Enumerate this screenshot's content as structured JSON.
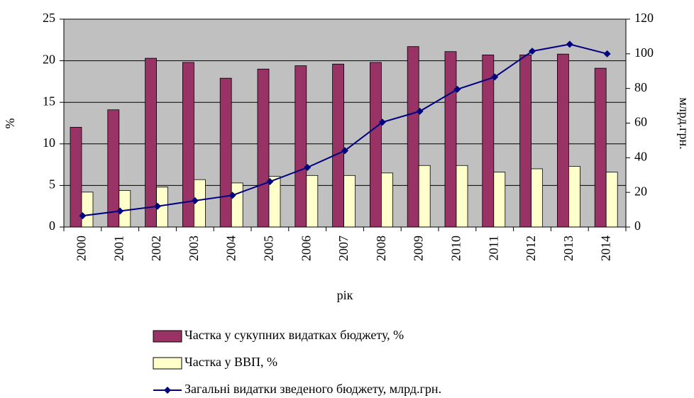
{
  "chart_data": {
    "type": "bar_line",
    "xlabel": "рік",
    "ylabel": "%",
    "y2label": "млрд.грн.",
    "categories": [
      "2000",
      "2001",
      "2002",
      "2003",
      "2004",
      "2005",
      "2006",
      "2007",
      "2008",
      "2009",
      "2010",
      "2011",
      "2012",
      "2013",
      "2014"
    ],
    "series": [
      {
        "name": "Частка у сукупних видатках бюджету, %",
        "type": "bar",
        "color": "#993366",
        "values": [
          12,
          14.1,
          20.3,
          19.8,
          17.9,
          19,
          19.4,
          19.6,
          19.8,
          21.7,
          21.1,
          20.7,
          20.7,
          20.8,
          19.1
        ]
      },
      {
        "name": "Частка у ВВП, %",
        "type": "bar",
        "color": "#ffffcc",
        "values": [
          4.2,
          4.4,
          4.8,
          5.7,
          5.3,
          6.1,
          6.2,
          6.2,
          6.5,
          7.4,
          7.4,
          6.6,
          7.0,
          7.3,
          6.6
        ]
      },
      {
        "name": "Загальні видатки зведеного бюджету, млрд.грн.",
        "type": "line",
        "axis": "y2",
        "color": "#000080",
        "values": [
          6.5,
          9.2,
          12,
          15.2,
          18.3,
          26.2,
          34.4,
          44.1,
          60.5,
          66.8,
          79.5,
          86.6,
          101.5,
          105.5,
          100
        ]
      }
    ],
    "ylim": [
      0,
      25
    ],
    "yticks": [
      0,
      5,
      10,
      15,
      20,
      25
    ],
    "y2lim": [
      0,
      120
    ],
    "y2ticks": [
      0,
      20,
      40,
      60,
      80,
      100,
      120
    ],
    "grid": true,
    "legend": "bottom",
    "background": "#c0c0c0"
  }
}
